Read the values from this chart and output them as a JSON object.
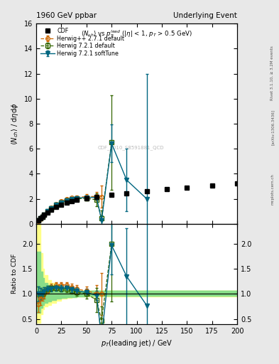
{
  "title_left": "1960 GeV ppbar",
  "title_right": "Underlying Event",
  "subtitle": "$\\langle N_{ch}\\rangle$ vs $p_T^{lead}$ ($|\\eta|$ < 1, $p_T$ > 0.5 GeV)",
  "watermark": "CDF_2010_S8591881_QCD",
  "rivet_label": "Rivet 3.1.10, ≥ 3.2M events",
  "arxiv_label": "[arXiv:1306.3436]",
  "mcplots_label": "mcplots.cern.ch",
  "ylabel_main": "$\\langle N_{ch}\\rangle$ / d$\\eta$d$\\phi$",
  "ylabel_ratio": "Ratio to CDF",
  "xlabel": "$p_T$(leading jet) / GeV",
  "ylim_main": [
    0,
    16
  ],
  "ylim_ratio": [
    0.4,
    2.4
  ],
  "xlim": [
    0,
    200
  ],
  "yticks_main": [
    0,
    2,
    4,
    6,
    8,
    10,
    12,
    14,
    16
  ],
  "yticks_ratio": [
    0.5,
    1.0,
    1.5,
    2.0
  ],
  "cdf_x": [
    2,
    4,
    6,
    8,
    11,
    15,
    20,
    25,
    30,
    35,
    40,
    50,
    60,
    75,
    90,
    110,
    130,
    150,
    175,
    200
  ],
  "cdf_y": [
    0.28,
    0.42,
    0.58,
    0.72,
    0.92,
    1.12,
    1.35,
    1.55,
    1.68,
    1.82,
    1.93,
    2.05,
    2.18,
    2.32,
    2.45,
    2.6,
    2.75,
    2.88,
    3.05,
    3.25
  ],
  "hpp_x": [
    2,
    4,
    6,
    8,
    11,
    15,
    20,
    25,
    30,
    35,
    40,
    50,
    60,
    65
  ],
  "hpp_y": [
    0.22,
    0.38,
    0.55,
    0.72,
    0.98,
    1.28,
    1.58,
    1.82,
    1.98,
    2.08,
    2.12,
    2.18,
    2.2,
    2.18
  ],
  "hpp_yerr": [
    0.04,
    0.05,
    0.05,
    0.05,
    0.06,
    0.07,
    0.08,
    0.09,
    0.1,
    0.1,
    0.12,
    0.18,
    0.35,
    0.9
  ],
  "hpp_color": "#cc6600",
  "hpp_label": "Herwig++ 2.7.1 default",
  "h721d_x": [
    2,
    4,
    6,
    8,
    11,
    15,
    20,
    25,
    30,
    35,
    40,
    50,
    60,
    65,
    75
  ],
  "h721d_y": [
    0.28,
    0.42,
    0.58,
    0.76,
    1.0,
    1.25,
    1.52,
    1.72,
    1.85,
    1.95,
    2.0,
    2.05,
    1.92,
    0.45,
    6.5
  ],
  "h721d_yerr": [
    0.04,
    0.05,
    0.05,
    0.05,
    0.06,
    0.07,
    0.08,
    0.09,
    0.1,
    0.1,
    0.12,
    0.18,
    0.5,
    0.6,
    3.8
  ],
  "h721d_color": "#336600",
  "h721d_label": "Herwig 7.2.1 default",
  "h721s_x": [
    2,
    4,
    6,
    8,
    11,
    15,
    20,
    25,
    30,
    35,
    40,
    50,
    60,
    65,
    75,
    90,
    110
  ],
  "h721s_y": [
    0.28,
    0.42,
    0.58,
    0.76,
    1.0,
    1.25,
    1.52,
    1.72,
    1.88,
    1.98,
    2.05,
    2.12,
    2.12,
    0.28,
    6.42,
    3.5,
    2.0
  ],
  "h721s_yerr": [
    0.04,
    0.05,
    0.05,
    0.05,
    0.06,
    0.07,
    0.08,
    0.09,
    0.1,
    0.1,
    0.12,
    0.15,
    0.18,
    0.4,
    1.5,
    2.5,
    10.0
  ],
  "h721s_color": "#006680",
  "h721s_label": "Herwig 7.2.1 softTune",
  "ratio_hpp_x": [
    2,
    4,
    6,
    8,
    11,
    15,
    20,
    25,
    30,
    35,
    40,
    50,
    60,
    65
  ],
  "ratio_hpp_y": [
    0.79,
    0.9,
    0.95,
    1.0,
    1.07,
    1.14,
    1.17,
    1.18,
    1.18,
    1.14,
    1.1,
    1.06,
    1.01,
    1.0
  ],
  "ratio_hpp_yerr": [
    0.15,
    0.12,
    0.09,
    0.09,
    0.07,
    0.06,
    0.06,
    0.06,
    0.06,
    0.06,
    0.07,
    0.09,
    0.17,
    0.42
  ],
  "ratio_h721d_x": [
    2,
    4,
    6,
    8,
    11,
    15,
    20,
    25,
    30,
    35,
    40,
    50,
    60,
    65,
    75
  ],
  "ratio_h721d_y": [
    1.0,
    1.0,
    1.0,
    1.05,
    1.09,
    1.12,
    1.12,
    1.11,
    1.1,
    1.07,
    1.04,
    1.0,
    0.88,
    0.47,
    2.0
  ],
  "ratio_h721d_yerr": [
    0.15,
    0.12,
    0.09,
    0.09,
    0.07,
    0.06,
    0.06,
    0.06,
    0.06,
    0.06,
    0.07,
    0.09,
    0.24,
    0.28,
    1.15
  ],
  "ratio_h721s_x": [
    2,
    4,
    6,
    8,
    11,
    15,
    20,
    25,
    30,
    35,
    40,
    50,
    60,
    65,
    75,
    90,
    110
  ],
  "ratio_h721s_y": [
    1.0,
    1.0,
    1.0,
    1.05,
    1.09,
    1.11,
    1.12,
    1.11,
    1.12,
    1.09,
    1.06,
    1.03,
    0.97,
    0.13,
    1.97,
    1.35,
    0.77
  ],
  "ratio_h721s_yerr": [
    0.15,
    0.12,
    0.09,
    0.09,
    0.07,
    0.06,
    0.06,
    0.06,
    0.06,
    0.06,
    0.07,
    0.07,
    0.09,
    0.18,
    0.58,
    0.97,
    3.85
  ],
  "band_yellow_x": [
    0,
    2,
    4,
    6,
    8,
    11,
    15,
    20,
    25,
    30,
    35,
    40,
    50,
    200
  ],
  "band_yellow_lo": [
    0.42,
    0.42,
    0.6,
    0.7,
    0.75,
    0.78,
    0.82,
    0.87,
    0.9,
    0.92,
    0.94,
    0.95,
    0.96,
    0.96
  ],
  "band_yellow_hi": [
    2.5,
    2.5,
    1.82,
    1.5,
    1.38,
    1.28,
    1.22,
    1.15,
    1.12,
    1.1,
    1.08,
    1.07,
    1.06,
    1.06
  ],
  "band_green_lo": [
    0.62,
    0.62,
    0.72,
    0.78,
    0.82,
    0.85,
    0.88,
    0.9,
    0.92,
    0.93,
    0.94,
    0.95,
    0.96,
    0.96
  ],
  "band_green_hi": [
    1.85,
    1.85,
    1.45,
    1.32,
    1.22,
    1.17,
    1.14,
    1.12,
    1.1,
    1.09,
    1.08,
    1.07,
    1.06,
    1.06
  ],
  "bg_color": "#e8e8e8",
  "plot_bg": "#ffffff"
}
